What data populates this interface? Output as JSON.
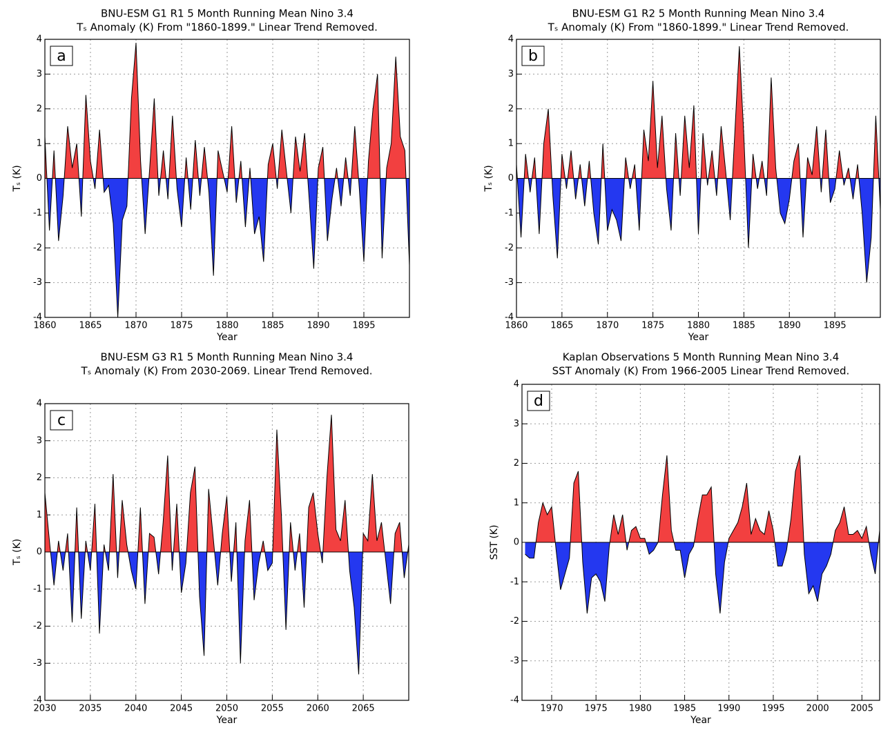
{
  "chart_data": [
    {
      "type": "area",
      "title": "BNU-ESM G1 R1 5 Month Running Mean Nino 3.4",
      "subtitle": "Tₛ Anomaly (K) From \"1860-1899.\" Linear Trend Removed.",
      "xlabel": "Year",
      "ylabel": "Tₛ (K)",
      "label": "a",
      "x": [
        1860,
        1860.5,
        1861,
        1861.5,
        1862,
        1862.5,
        1863,
        1863.5,
        1864,
        1864.5,
        1865,
        1865.5,
        1866,
        1866.5,
        1867,
        1867.5,
        1868,
        1868.5,
        1869,
        1869.5,
        1870,
        1870.5,
        1871,
        1871.5,
        1872,
        1872.5,
        1873,
        1873.5,
        1874,
        1874.5,
        1875,
        1875.5,
        1876,
        1876.5,
        1877,
        1877.5,
        1878,
        1878.5,
        1879,
        1879.5,
        1880,
        1880.5,
        1881,
        1881.5,
        1882,
        1882.5,
        1883,
        1883.5,
        1884,
        1884.5,
        1885,
        1885.5,
        1886,
        1886.5,
        1887,
        1887.5,
        1888,
        1888.5,
        1889,
        1889.5,
        1890,
        1890.5,
        1891,
        1891.5,
        1892,
        1892.5,
        1893,
        1893.5,
        1894,
        1894.5,
        1895,
        1895.5,
        1896,
        1896.5,
        1897,
        1897.5,
        1898,
        1898.5,
        1899,
        1899.5,
        1900
      ],
      "values": [
        1.2,
        -1.5,
        0.8,
        -1.8,
        -0.5,
        1.5,
        0.3,
        1.0,
        -1.1,
        2.4,
        0.5,
        -0.3,
        1.4,
        -0.4,
        -0.2,
        -1.3,
        -4.0,
        -1.2,
        -0.8,
        2.3,
        3.9,
        0.5,
        -1.6,
        0.3,
        2.3,
        -0.5,
        0.8,
        -0.6,
        1.8,
        -0.3,
        -1.4,
        0.6,
        -0.9,
        1.1,
        -0.5,
        0.9,
        -0.4,
        -2.8,
        0.8,
        0.2,
        -0.4,
        1.5,
        -0.7,
        0.5,
        -1.4,
        0.3,
        -1.6,
        -1.1,
        -2.4,
        0.4,
        1.0,
        -0.3,
        1.4,
        0.2,
        -1.0,
        1.2,
        0.2,
        1.3,
        -0.6,
        -2.6,
        0.3,
        0.9,
        -1.8,
        -0.6,
        0.3,
        -0.8,
        0.6,
        -0.5,
        1.5,
        -0.3,
        -2.4,
        0.5,
        2.0,
        3.0,
        -2.3,
        0.3,
        1.0,
        3.5,
        1.2,
        0.8,
        -2.5
      ],
      "xlim": [
        1860,
        1900
      ],
      "ylim": [
        -4,
        4
      ],
      "xticks": [
        1860,
        1865,
        1870,
        1875,
        1880,
        1885,
        1890,
        1895
      ],
      "yticks": [
        -4,
        -3,
        -2,
        -1,
        0,
        1,
        2,
        3,
        4
      ],
      "grid": true,
      "colors": {
        "line": "#000000",
        "positive": "#f24040",
        "negative": "#2438f0"
      }
    },
    {
      "type": "area",
      "title": "BNU-ESM G1 R2 5 Month Running Mean Nino 3.4",
      "subtitle": "Tₛ Anomaly (K) From \"1860-1899.\" Linear Trend Removed.",
      "xlabel": "Year",
      "ylabel": "Tₛ (K)",
      "label": "b",
      "x": [
        1860,
        1860.5,
        1861,
        1861.5,
        1862,
        1862.5,
        1863,
        1863.5,
        1864,
        1864.5,
        1865,
        1865.5,
        1866,
        1866.5,
        1867,
        1867.5,
        1868,
        1868.5,
        1869,
        1869.5,
        1870,
        1870.5,
        1871,
        1871.5,
        1872,
        1872.5,
        1873,
        1873.5,
        1874,
        1874.5,
        1875,
        1875.5,
        1876,
        1876.5,
        1877,
        1877.5,
        1878,
        1878.5,
        1879,
        1879.5,
        1880,
        1880.5,
        1881,
        1881.5,
        1882,
        1882.5,
        1883,
        1883.5,
        1884,
        1884.5,
        1885,
        1885.5,
        1886,
        1886.5,
        1887,
        1887.5,
        1888,
        1888.5,
        1889,
        1889.5,
        1890,
        1890.5,
        1891,
        1891.5,
        1892,
        1892.5,
        1893,
        1893.5,
        1894,
        1894.5,
        1895,
        1895.5,
        1896,
        1896.5,
        1897,
        1897.5,
        1898,
        1898.5,
        1899,
        1899.5,
        1900
      ],
      "values": [
        0.4,
        -1.7,
        0.7,
        -0.4,
        0.6,
        -1.6,
        1.0,
        2.0,
        -0.5,
        -2.3,
        0.7,
        -0.3,
        0.8,
        -0.6,
        0.4,
        -0.8,
        0.5,
        -1.0,
        -1.9,
        1.0,
        -1.5,
        -0.9,
        -1.2,
        -1.8,
        0.6,
        -0.3,
        0.4,
        -1.5,
        1.4,
        0.5,
        2.8,
        0.3,
        1.8,
        -0.3,
        -1.5,
        1.3,
        -0.5,
        1.8,
        0.3,
        2.1,
        -1.6,
        1.3,
        -0.2,
        0.8,
        -0.5,
        1.5,
        0.2,
        -1.2,
        1.3,
        3.8,
        1.2,
        -2.0,
        0.7,
        -0.3,
        0.5,
        -0.5,
        2.9,
        0.3,
        -1.0,
        -1.3,
        -0.6,
        0.5,
        1.0,
        -1.7,
        0.6,
        0.1,
        1.5,
        -0.4,
        1.4,
        -0.7,
        -0.3,
        0.8,
        -0.2,
        0.3,
        -0.6,
        0.4,
        -1.0,
        -3.0,
        -1.7,
        1.8,
        -0.9
      ],
      "xlim": [
        1860,
        1900
      ],
      "ylim": [
        -4,
        4
      ],
      "xticks": [
        1860,
        1865,
        1870,
        1875,
        1880,
        1885,
        1890,
        1895
      ],
      "yticks": [
        -4,
        -3,
        -2,
        -1,
        0,
        1,
        2,
        3,
        4
      ],
      "grid": true,
      "colors": {
        "line": "#000000",
        "positive": "#f24040",
        "negative": "#2438f0"
      }
    },
    {
      "type": "area",
      "title": "BNU-ESM G3 R1 5 Month Running Mean Nino 3.4",
      "subtitle": "Tₛ Anomaly (K) From 2030-2069. Linear Trend Removed.",
      "xlabel": "Year",
      "ylabel": "Tₛ (K)",
      "label": "c",
      "x": [
        2030,
        2030.5,
        2031,
        2031.5,
        2032,
        2032.5,
        2033,
        2033.5,
        2034,
        2034.5,
        2035,
        2035.5,
        2036,
        2036.5,
        2037,
        2037.5,
        2038,
        2038.5,
        2039,
        2039.5,
        2040,
        2040.5,
        2041,
        2041.5,
        2042,
        2042.5,
        2043,
        2043.5,
        2044,
        2044.5,
        2045,
        2045.5,
        2046,
        2046.5,
        2047,
        2047.5,
        2048,
        2048.5,
        2049,
        2049.5,
        2050,
        2050.5,
        2051,
        2051.5,
        2052,
        2052.5,
        2053,
        2053.5,
        2054,
        2054.5,
        2055,
        2055.5,
        2056,
        2056.5,
        2057,
        2057.5,
        2058,
        2058.5,
        2059,
        2059.5,
        2060,
        2060.5,
        2061,
        2061.5,
        2062,
        2062.5,
        2063,
        2063.5,
        2064,
        2064.5,
        2065,
        2065.5,
        2066,
        2066.5,
        2067,
        2067.5,
        2068,
        2068.5,
        2069,
        2069.5,
        2070
      ],
      "values": [
        1.6,
        0.3,
        -0.9,
        0.3,
        -0.5,
        0.5,
        -1.9,
        1.2,
        -1.8,
        0.3,
        -0.5,
        1.3,
        -2.2,
        0.2,
        -0.5,
        2.1,
        -0.7,
        1.4,
        0.2,
        -0.5,
        -1.0,
        1.2,
        -1.4,
        0.5,
        0.4,
        -0.6,
        0.8,
        2.6,
        -0.5,
        1.3,
        -1.1,
        -0.3,
        1.6,
        2.3,
        -1.2,
        -2.8,
        1.7,
        0.4,
        -0.9,
        0.5,
        1.5,
        -0.8,
        0.8,
        -3.0,
        0.3,
        1.4,
        -1.3,
        -0.3,
        0.3,
        -0.5,
        -0.3,
        3.3,
        1.0,
        -2.1,
        0.8,
        -0.5,
        0.5,
        -1.5,
        1.2,
        1.6,
        0.5,
        -0.3,
        2.0,
        3.7,
        0.6,
        0.3,
        1.4,
        -0.5,
        -1.5,
        -3.3,
        0.5,
        0.3,
        2.1,
        0.3,
        0.8,
        -0.3,
        -1.4,
        0.5,
        0.8,
        -0.7,
        0.2
      ],
      "xlim": [
        2030,
        2070
      ],
      "ylim": [
        -4,
        4
      ],
      "xticks": [
        2030,
        2035,
        2040,
        2045,
        2050,
        2055,
        2060,
        2065
      ],
      "yticks": [
        -4,
        -3,
        -2,
        -1,
        0,
        1,
        2,
        3,
        4
      ],
      "grid": true,
      "colors": {
        "line": "#000000",
        "positive": "#f24040",
        "negative": "#2438f0"
      }
    },
    {
      "type": "area",
      "title": "Kaplan Observations 5 Month Running Mean Nino 3.4",
      "subtitle": "SST Anomaly (K) From 1966-2005 Linear Trend Removed.",
      "xlabel": "Year",
      "ylabel": "SST (K)",
      "label": "d",
      "x": [
        1967,
        1967.5,
        1968,
        1968.5,
        1969,
        1969.5,
        1970,
        1970.5,
        1971,
        1971.5,
        1972,
        1972.5,
        1973,
        1973.5,
        1974,
        1974.5,
        1975,
        1975.5,
        1976,
        1976.5,
        1977,
        1977.5,
        1978,
        1978.5,
        1979,
        1979.5,
        1980,
        1980.5,
        1981,
        1981.5,
        1982,
        1982.5,
        1983,
        1983.5,
        1984,
        1984.5,
        1985,
        1985.5,
        1986,
        1986.5,
        1987,
        1987.5,
        1988,
        1988.5,
        1989,
        1989.5,
        1990,
        1990.5,
        1991,
        1991.5,
        1992,
        1992.5,
        1993,
        1993.5,
        1994,
        1994.5,
        1995,
        1995.5,
        1996,
        1996.5,
        1997,
        1997.5,
        1998,
        1998.5,
        1999,
        1999.5,
        2000,
        2000.5,
        2001,
        2001.5,
        2002,
        2002.5,
        2003,
        2003.5,
        2004,
        2004.5,
        2005,
        2005.5,
        2006,
        2006.5,
        2007
      ],
      "values": [
        -0.3,
        -0.4,
        -0.4,
        0.5,
        1.0,
        0.7,
        0.9,
        -0.2,
        -1.2,
        -0.8,
        -0.4,
        1.5,
        1.8,
        -0.5,
        -1.8,
        -0.9,
        -0.8,
        -1.0,
        -1.5,
        -0.1,
        0.7,
        0.2,
        0.7,
        -0.2,
        0.3,
        0.4,
        0.1,
        0.1,
        -0.3,
        -0.2,
        0.0,
        1.2,
        2.2,
        0.3,
        -0.2,
        -0.2,
        -0.9,
        -0.3,
        -0.1,
        0.6,
        1.2,
        1.2,
        1.4,
        -0.8,
        -1.8,
        -0.5,
        0.1,
        0.3,
        0.5,
        0.9,
        1.5,
        0.2,
        0.6,
        0.3,
        0.2,
        0.8,
        0.3,
        -0.6,
        -0.6,
        -0.2,
        0.6,
        1.8,
        2.2,
        -0.3,
        -1.3,
        -1.1,
        -1.5,
        -0.8,
        -0.6,
        -0.3,
        0.3,
        0.5,
        0.9,
        0.2,
        0.2,
        0.3,
        0.1,
        0.4,
        -0.3,
        -0.8,
        0.3
      ],
      "xlim": [
        1966.65,
        2007
      ],
      "ylim": [
        -4,
        4
      ],
      "xticks": [
        1970,
        1975,
        1980,
        1985,
        1990,
        1995,
        2000,
        2005
      ],
      "yticks": [
        -4,
        -3,
        -2,
        -1,
        0,
        1,
        2,
        3,
        4
      ],
      "grid": true,
      "colors": {
        "line": "#000000",
        "positive": "#f24040",
        "negative": "#2438f0"
      }
    }
  ]
}
